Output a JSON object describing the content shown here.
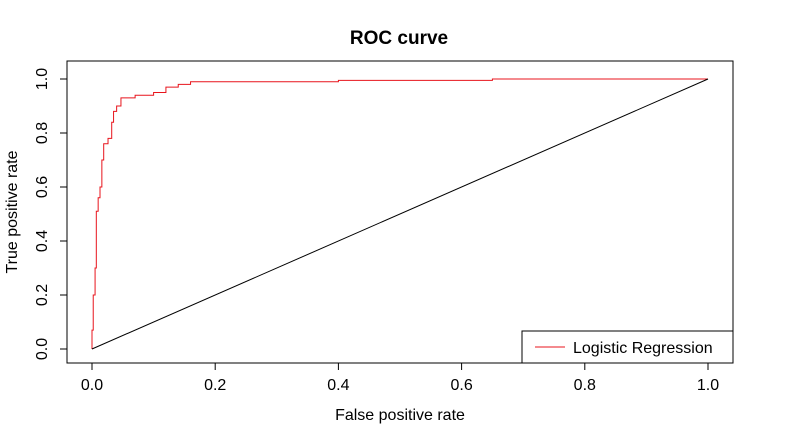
{
  "chart_data": {
    "type": "line",
    "title": "ROC curve",
    "xlabel": "False positive rate",
    "ylabel": "True positive rate",
    "xlim": [
      0,
      1
    ],
    "ylim": [
      0,
      1
    ],
    "x_ticks": [
      "0.0",
      "0.2",
      "0.4",
      "0.6",
      "0.8",
      "1.0"
    ],
    "y_ticks": [
      "0.0",
      "0.2",
      "0.4",
      "0.6",
      "0.8",
      "1.0"
    ],
    "grid": false,
    "legend_position": "bottom-right",
    "series": [
      {
        "name": "Logistic Regression",
        "color": "#e8141c",
        "points": [
          [
            0.0,
            0.0
          ],
          [
            0.0,
            0.07
          ],
          [
            0.002,
            0.07
          ],
          [
            0.002,
            0.2
          ],
          [
            0.005,
            0.2
          ],
          [
            0.005,
            0.3
          ],
          [
            0.007,
            0.3
          ],
          [
            0.007,
            0.51
          ],
          [
            0.01,
            0.51
          ],
          [
            0.01,
            0.56
          ],
          [
            0.013,
            0.56
          ],
          [
            0.013,
            0.6
          ],
          [
            0.016,
            0.6
          ],
          [
            0.016,
            0.7
          ],
          [
            0.019,
            0.7
          ],
          [
            0.019,
            0.76
          ],
          [
            0.026,
            0.76
          ],
          [
            0.026,
            0.78
          ],
          [
            0.032,
            0.78
          ],
          [
            0.032,
            0.84
          ],
          [
            0.035,
            0.84
          ],
          [
            0.035,
            0.88
          ],
          [
            0.04,
            0.88
          ],
          [
            0.04,
            0.9
          ],
          [
            0.047,
            0.9
          ],
          [
            0.047,
            0.93
          ],
          [
            0.07,
            0.93
          ],
          [
            0.07,
            0.94
          ],
          [
            0.1,
            0.94
          ],
          [
            0.1,
            0.95
          ],
          [
            0.12,
            0.95
          ],
          [
            0.12,
            0.97
          ],
          [
            0.14,
            0.97
          ],
          [
            0.14,
            0.98
          ],
          [
            0.16,
            0.98
          ],
          [
            0.16,
            0.99
          ],
          [
            0.4,
            0.99
          ],
          [
            0.4,
            0.995
          ],
          [
            0.65,
            0.995
          ],
          [
            0.65,
            1.0
          ],
          [
            1.0,
            1.0
          ]
        ]
      },
      {
        "name": "",
        "color": "#000000",
        "points": [
          [
            0.0,
            0.0
          ],
          [
            1.0,
            1.0
          ]
        ]
      }
    ]
  }
}
